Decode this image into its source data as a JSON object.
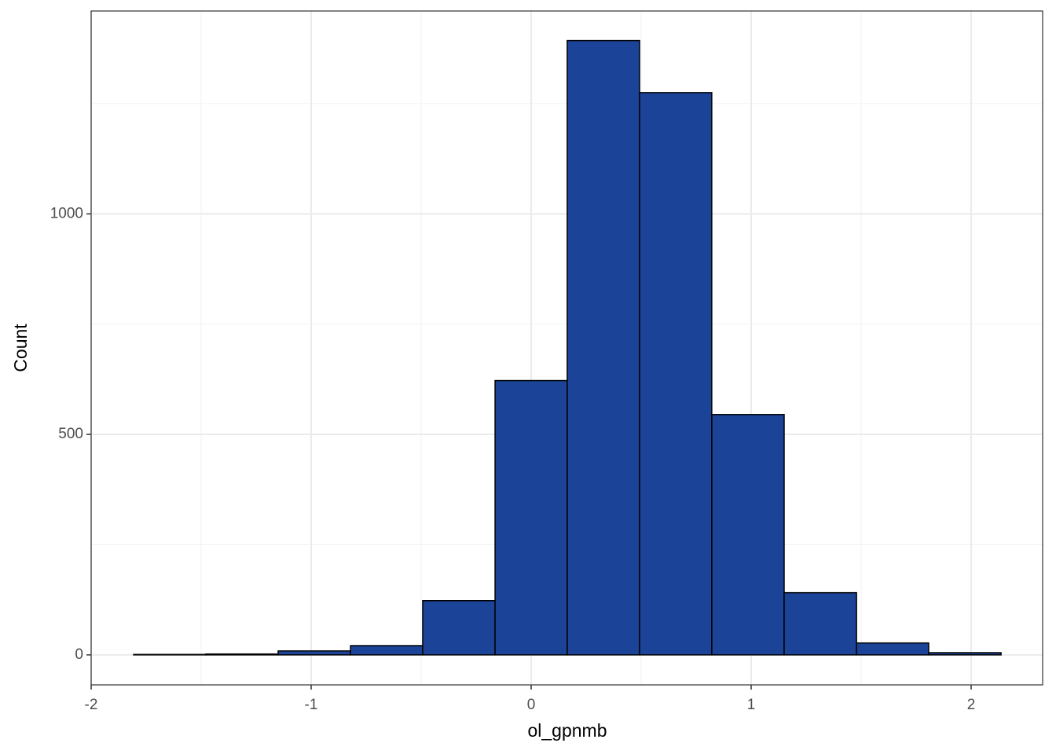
{
  "chart_data": {
    "type": "histogram",
    "x_label": "ol_gpnmb",
    "y_label": "Count",
    "bins": [
      -1.807,
      -1.479,
      -1.15,
      -0.821,
      -0.493,
      -0.164,
      0.164,
      0.493,
      0.821,
      1.15,
      1.479,
      1.807,
      2.136
    ],
    "values": [
      1,
      2,
      9,
      21,
      123,
      622,
      1393,
      1275,
      545,
      141,
      27,
      5
    ],
    "color": "#1b4499",
    "edge_color": "#000000",
    "xlim": [
      -2,
      2.325
    ],
    "ylim": [
      -68,
      1460
    ],
    "xticks": [
      -2,
      -1,
      0,
      1,
      2
    ],
    "yticks": [
      0,
      500,
      1000
    ],
    "x_minor_ticks": [
      -1.5,
      -0.5,
      0.5,
      1.5
    ],
    "y_minor_ticks": [
      250,
      750,
      1250
    ],
    "grid": true
  }
}
